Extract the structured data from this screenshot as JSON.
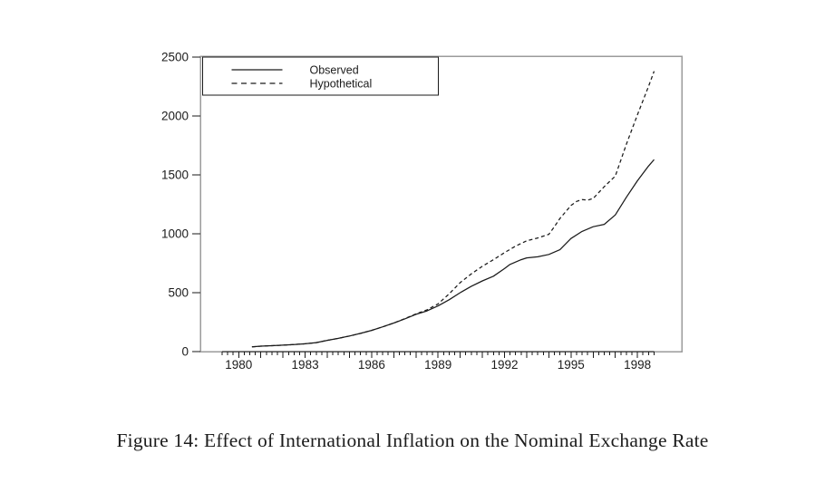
{
  "figure": {
    "caption": "Figure 14: Effect of International Inflation on the Nominal Exchange Rate"
  },
  "chart_data": {
    "type": "line",
    "title": "",
    "xlabel": "",
    "ylabel": "",
    "xlim": [
      1978.27,
      2000.0
    ],
    "ylim": [
      0,
      2500
    ],
    "y_ticks": [
      0,
      500,
      1000,
      1500,
      2000,
      2500
    ],
    "x_ticks_labeled": [
      1980,
      1983,
      1986,
      1989,
      1992,
      1995,
      1998
    ],
    "x_minor_ticks": {
      "start": 1979.25,
      "end": 1998.75,
      "step": 0.25
    },
    "grid": "off",
    "legend": {
      "position": "top-left",
      "entries": [
        {
          "label": "Observed",
          "style": "solid"
        },
        {
          "label": "Hypothetical",
          "style": "dashed"
        }
      ]
    },
    "series": [
      {
        "name": "Observed",
        "style": "solid",
        "color": "#1a1a1a",
        "points": [
          [
            1980.6,
            40
          ],
          [
            1981,
            46
          ],
          [
            1981.5,
            50
          ],
          [
            1982,
            55
          ],
          [
            1982.5,
            60
          ],
          [
            1983,
            66
          ],
          [
            1983.5,
            76
          ],
          [
            1984,
            95
          ],
          [
            1984.5,
            112
          ],
          [
            1985,
            132
          ],
          [
            1985.5,
            155
          ],
          [
            1986,
            180
          ],
          [
            1986.5,
            210
          ],
          [
            1987,
            242
          ],
          [
            1987.5,
            278
          ],
          [
            1988,
            316
          ],
          [
            1988.5,
            345
          ],
          [
            1989,
            388
          ],
          [
            1989.5,
            440
          ],
          [
            1990,
            500
          ],
          [
            1990.5,
            555
          ],
          [
            1991,
            600
          ],
          [
            1991.5,
            640
          ],
          [
            1992,
            705
          ],
          [
            1992.25,
            740
          ],
          [
            1992.75,
            780
          ],
          [
            1993,
            795
          ],
          [
            1993.5,
            805
          ],
          [
            1994,
            825
          ],
          [
            1994.5,
            865
          ],
          [
            1995,
            960
          ],
          [
            1995.5,
            1020
          ],
          [
            1996,
            1060
          ],
          [
            1996.5,
            1080
          ],
          [
            1997,
            1160
          ],
          [
            1997.5,
            1310
          ],
          [
            1998,
            1450
          ],
          [
            1998.5,
            1575
          ],
          [
            1998.75,
            1630
          ]
        ]
      },
      {
        "name": "Hypothetical",
        "style": "dashed",
        "color": "#1a1a1a",
        "points": [
          [
            1980.6,
            40
          ],
          [
            1981,
            46
          ],
          [
            1981.5,
            50
          ],
          [
            1982,
            55
          ],
          [
            1982.5,
            60
          ],
          [
            1983,
            66
          ],
          [
            1983.5,
            76
          ],
          [
            1984,
            95
          ],
          [
            1984.5,
            112
          ],
          [
            1985,
            132
          ],
          [
            1985.5,
            155
          ],
          [
            1986,
            180
          ],
          [
            1986.5,
            210
          ],
          [
            1987,
            242
          ],
          [
            1987.5,
            280
          ],
          [
            1988,
            320
          ],
          [
            1988.5,
            355
          ],
          [
            1989,
            405
          ],
          [
            1989.5,
            490
          ],
          [
            1990,
            585
          ],
          [
            1990.5,
            660
          ],
          [
            1991,
            725
          ],
          [
            1991.5,
            780
          ],
          [
            1992,
            840
          ],
          [
            1992.5,
            895
          ],
          [
            1993,
            940
          ],
          [
            1993.5,
            965
          ],
          [
            1994,
            995
          ],
          [
            1994.25,
            1060
          ],
          [
            1994.5,
            1130
          ],
          [
            1995,
            1240
          ],
          [
            1995.25,
            1275
          ],
          [
            1995.5,
            1290
          ],
          [
            1995.75,
            1285
          ],
          [
            1996,
            1300
          ],
          [
            1996.5,
            1400
          ],
          [
            1997,
            1490
          ],
          [
            1997.5,
            1760
          ],
          [
            1998,
            2010
          ],
          [
            1998.5,
            2250
          ],
          [
            1998.75,
            2380
          ]
        ]
      }
    ],
    "colors": {
      "frame": "#9b9b9b",
      "axis": "#1a1a1a",
      "text": "#1c1c1c",
      "line": "#1a1a1a",
      "background": "#ffffff"
    }
  }
}
